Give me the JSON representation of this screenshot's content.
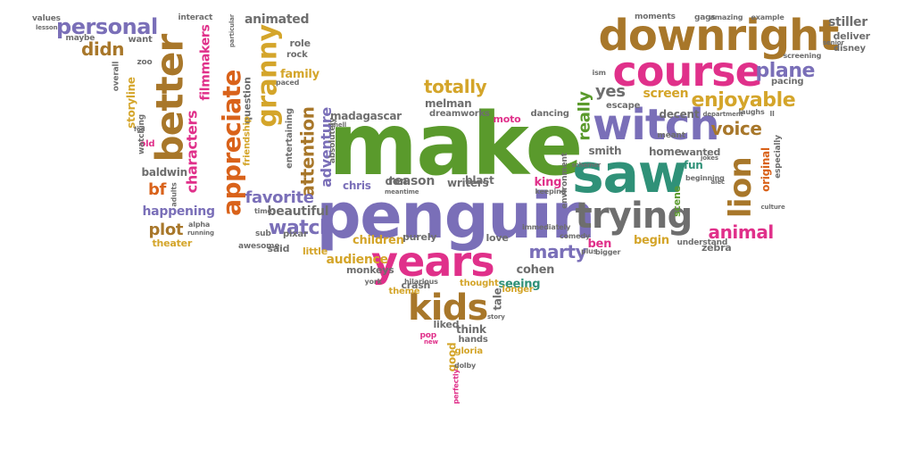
{
  "words": [
    {
      "t": "make",
      "c": "green"
    },
    {
      "t": "penguin",
      "c": "purple"
    },
    {
      "t": "saw",
      "c": "teal"
    },
    {
      "t": "years",
      "c": "pink"
    },
    {
      "t": "witch",
      "c": "purple"
    },
    {
      "t": "course",
      "c": "pink"
    },
    {
      "t": "downright",
      "c": "brown"
    },
    {
      "t": "appreciate",
      "c": "orange"
    },
    {
      "t": "better",
      "c": "brown"
    },
    {
      "t": "granny",
      "c": "gold"
    },
    {
      "t": "trying",
      "c": "gray"
    },
    {
      "t": "lion",
      "c": "brown"
    },
    {
      "t": "kids",
      "c": "brown"
    },
    {
      "t": "totally",
      "c": "gold"
    },
    {
      "t": "enjoyable",
      "c": "gold"
    },
    {
      "t": "watch",
      "c": "purple"
    },
    {
      "t": "voice",
      "c": "brown"
    },
    {
      "t": "personal",
      "c": "purple"
    },
    {
      "t": "characters",
      "c": "pink"
    },
    {
      "t": "attention",
      "c": "brown"
    },
    {
      "t": "adventure",
      "c": "purple"
    },
    {
      "t": "plane",
      "c": "purple"
    },
    {
      "t": "animal",
      "c": "pink"
    },
    {
      "t": "favorite",
      "c": "purple"
    },
    {
      "t": "marty",
      "c": "purple"
    },
    {
      "t": "didn",
      "c": "brown"
    },
    {
      "t": "plot",
      "c": "brown"
    },
    {
      "t": "bf",
      "c": "orange"
    },
    {
      "t": "yes",
      "c": "gray"
    },
    {
      "t": "really",
      "c": "green"
    },
    {
      "t": "filmmakers",
      "c": "pink"
    },
    {
      "t": "storyline",
      "c": "gold"
    },
    {
      "t": "chris",
      "c": "purple"
    },
    {
      "t": "reason",
      "c": "gray"
    },
    {
      "t": "don",
      "c": "gray"
    },
    {
      "t": "madagascar",
      "c": "gray"
    },
    {
      "t": "melman",
      "c": "gray"
    },
    {
      "t": "dreamworks",
      "c": "gray"
    },
    {
      "t": "happening",
      "c": "purple"
    },
    {
      "t": "beautiful",
      "c": "gray"
    },
    {
      "t": "audience",
      "c": "gold"
    },
    {
      "t": "children",
      "c": "gold"
    },
    {
      "t": "cohen",
      "c": "gray"
    },
    {
      "t": "seeing",
      "c": "teal"
    },
    {
      "t": "king",
      "c": "pink"
    },
    {
      "t": "blast",
      "c": "gray"
    },
    {
      "t": "writers",
      "c": "gray"
    },
    {
      "t": "screen",
      "c": "gold"
    },
    {
      "t": "decent",
      "c": "gray"
    },
    {
      "t": "home",
      "c": "gray"
    },
    {
      "t": "wanted",
      "c": "gray"
    },
    {
      "t": "fun",
      "c": "teal"
    },
    {
      "t": "ben",
      "c": "pink"
    },
    {
      "t": "begin",
      "c": "gold"
    },
    {
      "t": "zebra",
      "c": "gray"
    },
    {
      "t": "understand",
      "c": "gray"
    },
    {
      "t": "original",
      "c": "orange"
    },
    {
      "t": "scene",
      "c": "green"
    },
    {
      "t": "stiller",
      "c": "gray"
    },
    {
      "t": "deliver",
      "c": "gray"
    },
    {
      "t": "disney",
      "c": "gray"
    },
    {
      "t": "animated",
      "c": "gray"
    },
    {
      "t": "family",
      "c": "gold"
    },
    {
      "t": "question",
      "c": "gray"
    },
    {
      "t": "role",
      "c": "gray"
    },
    {
      "t": "rock",
      "c": "gray"
    },
    {
      "t": "baldwin",
      "c": "gray"
    },
    {
      "t": "theater",
      "c": "gold"
    },
    {
      "t": "little",
      "c": "gold"
    },
    {
      "t": "said",
      "c": "gray"
    },
    {
      "t": "pixar",
      "c": "gray"
    },
    {
      "t": "entertaining",
      "c": "gray"
    },
    {
      "t": "friendship",
      "c": "gold"
    },
    {
      "t": "purely",
      "c": "gray"
    },
    {
      "t": "love",
      "c": "gray"
    },
    {
      "t": "thought",
      "c": "gold"
    },
    {
      "t": "longer",
      "c": "gold"
    },
    {
      "t": "crash",
      "c": "gray"
    },
    {
      "t": "hilarious",
      "c": "gray"
    },
    {
      "t": "theme",
      "c": "gold"
    },
    {
      "t": "tale",
      "c": "gray"
    },
    {
      "t": "liked",
      "c": "gray"
    },
    {
      "t": "think",
      "c": "gray"
    },
    {
      "t": "good",
      "c": "gold"
    },
    {
      "t": "hands",
      "c": "gray"
    },
    {
      "t": "gloria",
      "c": "gold"
    },
    {
      "t": "monkeys",
      "c": "gray"
    },
    {
      "t": "dancing",
      "c": "gray"
    },
    {
      "t": "moto",
      "c": "pink"
    },
    {
      "t": "escape",
      "c": "gray"
    },
    {
      "t": "meant",
      "c": "gray"
    },
    {
      "t": "moments",
      "c": "gray"
    },
    {
      "t": "gags",
      "c": "gray"
    },
    {
      "t": "amazing",
      "c": "gray"
    },
    {
      "t": "example",
      "c": "gray"
    },
    {
      "t": "pacing",
      "c": "gray"
    },
    {
      "t": "screening",
      "c": "gray"
    },
    {
      "t": "overall",
      "c": "gray"
    },
    {
      "t": "want",
      "c": "gray"
    },
    {
      "t": "maybe",
      "c": "gray"
    },
    {
      "t": "values",
      "c": "gray"
    },
    {
      "t": "lesson",
      "c": "gray"
    },
    {
      "t": "interact",
      "c": "gray"
    },
    {
      "t": "old",
      "c": "pink"
    },
    {
      "t": "watching",
      "c": "gray"
    },
    {
      "t": "smith",
      "c": "gray"
    },
    {
      "t": "environment",
      "c": "gray"
    },
    {
      "t": "comedy",
      "c": "gray"
    },
    {
      "t": "immediately",
      "c": "gray"
    },
    {
      "t": "plus",
      "c": "gray"
    },
    {
      "t": "bigger",
      "c": "gray"
    },
    {
      "t": "absolutely",
      "c": "gray"
    },
    {
      "t": "paced",
      "c": "gray"
    },
    {
      "t": "york",
      "c": "gray"
    },
    {
      "t": "pop",
      "c": "pink"
    },
    {
      "t": "new",
      "c": "pink"
    },
    {
      "t": "perfectly",
      "c": "pink"
    },
    {
      "t": "dolby",
      "c": "gray"
    },
    {
      "t": "story",
      "c": "gray"
    },
    {
      "t": "keeping",
      "c": "gray"
    },
    {
      "t": "meantime",
      "c": "gray"
    },
    {
      "t": "awesome",
      "c": "gray"
    },
    {
      "t": "sub",
      "c": "gray"
    },
    {
      "t": "alpha",
      "c": "gray"
    },
    {
      "t": "running",
      "c": "gray"
    },
    {
      "t": "time",
      "c": "gray"
    },
    {
      "t": "adults",
      "c": "gray"
    },
    {
      "t": "zoo",
      "c": "gray"
    },
    {
      "t": "ll",
      "c": "gray"
    },
    {
      "t": "department",
      "c": "gray"
    },
    {
      "t": "laughs",
      "c": "gray"
    },
    {
      "t": "especially",
      "c": "gray"
    },
    {
      "t": "culture",
      "c": "gray"
    },
    {
      "t": "beginning",
      "c": "gray"
    },
    {
      "t": "alec",
      "c": "gray"
    },
    {
      "t": "jokes",
      "c": "gray"
    },
    {
      "t": "shell",
      "c": "gray"
    },
    {
      "t": "ism",
      "c": "gray"
    },
    {
      "t": "particular",
      "c": "gray"
    },
    {
      "t": "fed",
      "c": "gray"
    },
    {
      "t": "schemer",
      "c": "gray"
    },
    {
      "t": "senior",
      "c": "gray"
    }
  ],
  "colors": {
    "green": "#5a9a2c",
    "purple": "#7a6fb8",
    "teal": "#2f9178",
    "pink": "#e0308a",
    "brown": "#a8772a",
    "orange": "#d9621a",
    "gold": "#d4a52a",
    "gray": "#6e6e6e"
  }
}
